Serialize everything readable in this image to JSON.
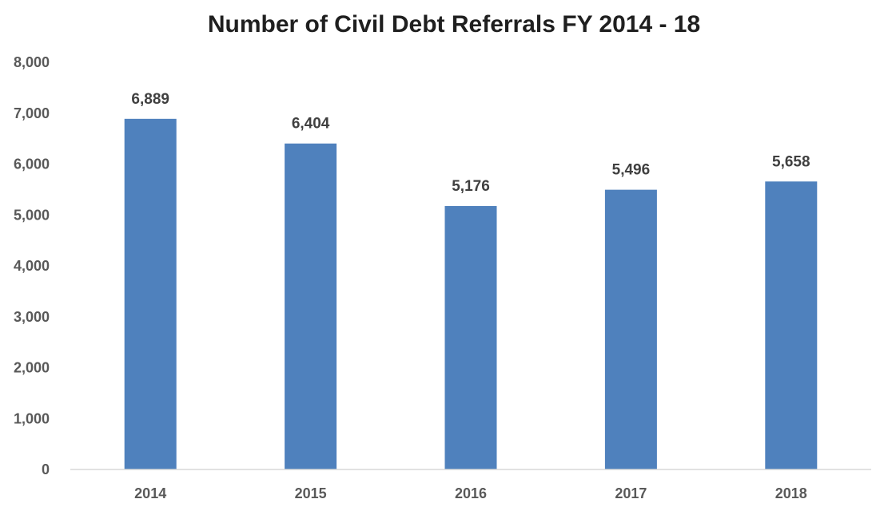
{
  "chart_data": {
    "type": "bar",
    "title": "Number of Civil Debt Referrals FY 2014 - 18",
    "xlabel": "",
    "ylabel": "",
    "categories": [
      "2014",
      "2015",
      "2016",
      "2017",
      "2018"
    ],
    "values": [
      6889,
      6404,
      5176,
      5496,
      5658
    ],
    "data_labels": [
      "6,889",
      "6,404",
      "5,176",
      "5,496",
      "5,658"
    ],
    "ylim": [
      0,
      8000
    ],
    "yticks": [
      0,
      1000,
      2000,
      3000,
      4000,
      5000,
      6000,
      7000,
      8000
    ],
    "ytick_labels": [
      "0",
      "1,000",
      "2,000",
      "3,000",
      "4,000",
      "5,000",
      "6,000",
      "7,000",
      "8,000"
    ],
    "grid": false,
    "legend": "none",
    "bar_color": "#4f81bd"
  }
}
